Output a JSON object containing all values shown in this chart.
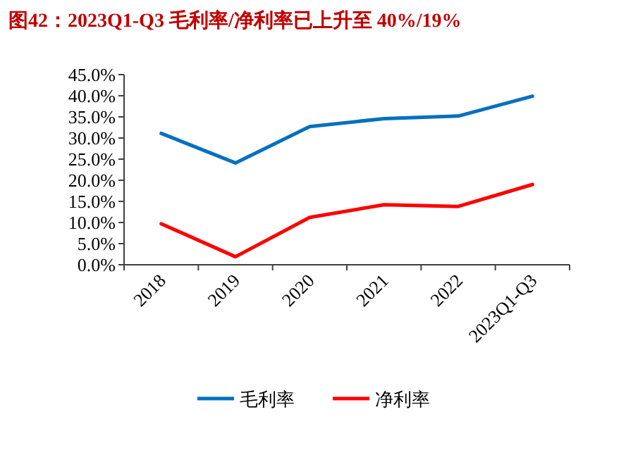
{
  "chart_data": {
    "type": "line",
    "title": "图42：2023Q1-Q3 毛利率/净利率已上升至 40%/19%",
    "categories": [
      "2018",
      "2019",
      "2020",
      "2021",
      "2022",
      "2023Q1-Q3"
    ],
    "series": [
      {
        "name": "毛利率",
        "color": "#0070c0",
        "values": [
          31.1,
          24.1,
          32.7,
          34.6,
          35.2,
          39.9
        ]
      },
      {
        "name": "净利率",
        "color": "#ff0000",
        "values": [
          9.7,
          1.9,
          11.2,
          14.2,
          13.8,
          19.0
        ]
      }
    ],
    "ylim": [
      0,
      45
    ],
    "yticks": [
      {
        "value": 0,
        "label": "0.0%"
      },
      {
        "value": 5,
        "label": "5.0%"
      },
      {
        "value": 10,
        "label": "10.0%"
      },
      {
        "value": 15,
        "label": "15.0%"
      },
      {
        "value": 20,
        "label": "20.0%"
      },
      {
        "value": 25,
        "label": "25.0%"
      },
      {
        "value": 30,
        "label": "30.0%"
      },
      {
        "value": 35,
        "label": "35.0%"
      },
      {
        "value": 40,
        "label": "40.0%"
      },
      {
        "value": 45,
        "label": "45.0%"
      }
    ],
    "grid": false,
    "legend": "bottom",
    "marker": "none",
    "line_style": "solid"
  }
}
